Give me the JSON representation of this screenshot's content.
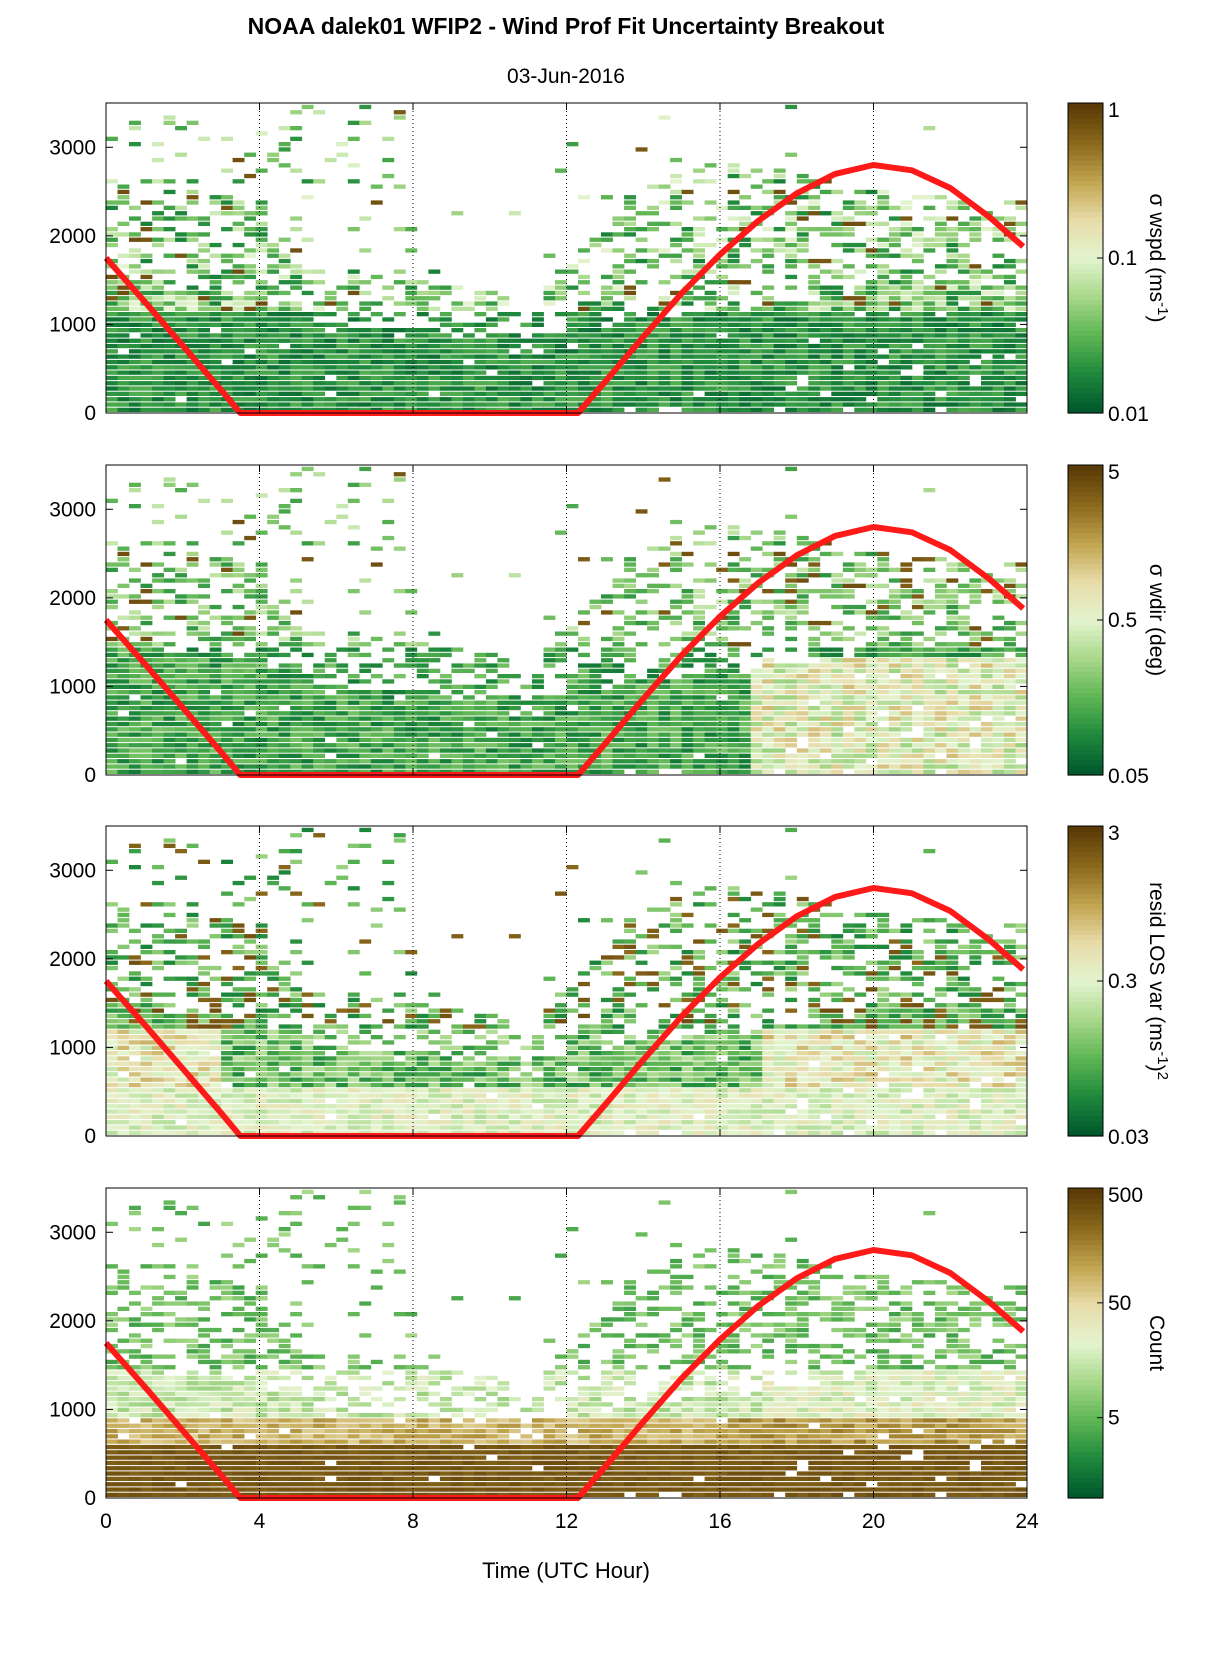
{
  "figure": {
    "title": "NOAA dalek01 WFIP2 - Wind Prof Fit Uncertainty Breakout",
    "subtitle": "03-Jun-2016",
    "xlabel": "Time (UTC Hour)"
  },
  "colors": {
    "sun_curve": "#ff1a1a",
    "colormap": [
      "#00582c",
      "#1f8a3c",
      "#5fb654",
      "#a8d88a",
      "#e3f4cf",
      "#e8dcaa",
      "#c2a550",
      "#8b6a1c",
      "#5a3a06"
    ]
  },
  "chart_data": [
    {
      "type": "heatmap",
      "panel": "wspd",
      "xlim": [
        0,
        24
      ],
      "ylim": [
        0,
        3500
      ],
      "xticks": [
        0,
        4,
        8,
        12,
        16,
        20,
        24
      ],
      "yticks": [
        0,
        1000,
        2000,
        3000
      ],
      "xgrid_dotted": [
        4,
        8,
        12,
        16,
        20
      ],
      "colorbar": {
        "scale": "log",
        "lim": [
          0.01,
          1
        ],
        "ticks": [
          {
            "value": 0.01,
            "label": "0.01"
          },
          {
            "value": 0.1,
            "label": "0.1"
          },
          {
            "value": 1,
            "label": "1"
          }
        ],
        "label_main": "σ wspd (ms",
        "label_sup": "-1",
        "label_end": ")"
      },
      "sun_curve": {
        "x": [
          0,
          1,
          2,
          3,
          3.5,
          12.3,
          13,
          14,
          15,
          16,
          17,
          18,
          19,
          20,
          21,
          22,
          23,
          23.9
        ],
        "y": [
          1750,
          1260,
          760,
          260,
          0,
          0,
          350,
          860,
          1350,
          1790,
          2170,
          2480,
          2700,
          2800,
          2740,
          2540,
          2220,
          1880
        ]
      }
    },
    {
      "type": "heatmap",
      "panel": "wdir",
      "xlim": [
        0,
        24
      ],
      "ylim": [
        0,
        3500
      ],
      "xticks": [
        0,
        4,
        8,
        12,
        16,
        20,
        24
      ],
      "yticks": [
        0,
        1000,
        2000,
        3000
      ],
      "xgrid_dotted": [
        4,
        8,
        12,
        16,
        20
      ],
      "colorbar": {
        "scale": "log",
        "lim": [
          0.05,
          5
        ],
        "ticks": [
          {
            "value": 0.05,
            "label": "0.05"
          },
          {
            "value": 0.5,
            "label": "0.5"
          },
          {
            "value": 5,
            "label": "5"
          }
        ],
        "label_main": "σ wdir (deg)",
        "label_sup": "",
        "label_end": ""
      },
      "sun_curve": {
        "x": [
          0,
          1,
          2,
          3,
          3.5,
          12.3,
          13,
          14,
          15,
          16,
          17,
          18,
          19,
          20,
          21,
          22,
          23,
          23.9
        ],
        "y": [
          1750,
          1260,
          760,
          260,
          0,
          0,
          350,
          860,
          1350,
          1790,
          2170,
          2480,
          2700,
          2800,
          2740,
          2540,
          2220,
          1880
        ]
      }
    },
    {
      "type": "heatmap",
      "panel": "resid",
      "xlim": [
        0,
        24
      ],
      "ylim": [
        0,
        3500
      ],
      "xticks": [
        0,
        4,
        8,
        12,
        16,
        20,
        24
      ],
      "yticks": [
        0,
        1000,
        2000,
        3000
      ],
      "xgrid_dotted": [
        4,
        8,
        12,
        16,
        20
      ],
      "colorbar": {
        "scale": "log",
        "lim": [
          0.03,
          3
        ],
        "ticks": [
          {
            "value": 0.03,
            "label": "0.03"
          },
          {
            "value": 0.3,
            "label": "0.3"
          },
          {
            "value": 3,
            "label": "3"
          }
        ],
        "label_main": "resid LOS var (ms",
        "label_sup": "-1",
        "label_end": ")",
        "label_sup2": "2"
      },
      "sun_curve": {
        "x": [
          0,
          1,
          2,
          3,
          3.5,
          12.3,
          13,
          14,
          15,
          16,
          17,
          18,
          19,
          20,
          21,
          22,
          23,
          23.9
        ],
        "y": [
          1750,
          1260,
          760,
          260,
          0,
          0,
          350,
          860,
          1350,
          1790,
          2170,
          2480,
          2700,
          2800,
          2740,
          2540,
          2220,
          1880
        ]
      }
    },
    {
      "type": "heatmap",
      "panel": "count",
      "xlim": [
        0,
        24
      ],
      "ylim": [
        0,
        3500
      ],
      "xticks": [
        0,
        4,
        8,
        12,
        16,
        20,
        24
      ],
      "yticks": [
        0,
        1000,
        2000,
        3000
      ],
      "xgrid_dotted": [
        4,
        8,
        12,
        16,
        20
      ],
      "colorbar": {
        "scale": "log",
        "lim": [
          1,
          500
        ],
        "ticks": [
          {
            "value": 5,
            "label": "5"
          },
          {
            "value": 50,
            "label": "50"
          },
          {
            "value": 500,
            "label": "500"
          }
        ],
        "label_main": "Count",
        "label_sup": "",
        "label_end": ""
      },
      "sun_curve": {
        "x": [
          0,
          1,
          2,
          3,
          3.5,
          12.3,
          13,
          14,
          15,
          16,
          17,
          18,
          19,
          20,
          21,
          22,
          23,
          23.9
        ],
        "y": [
          1750,
          1260,
          760,
          260,
          0,
          0,
          350,
          860,
          1350,
          1790,
          2170,
          2480,
          2700,
          2800,
          2740,
          2540,
          2220,
          1880
        ]
      }
    }
  ]
}
